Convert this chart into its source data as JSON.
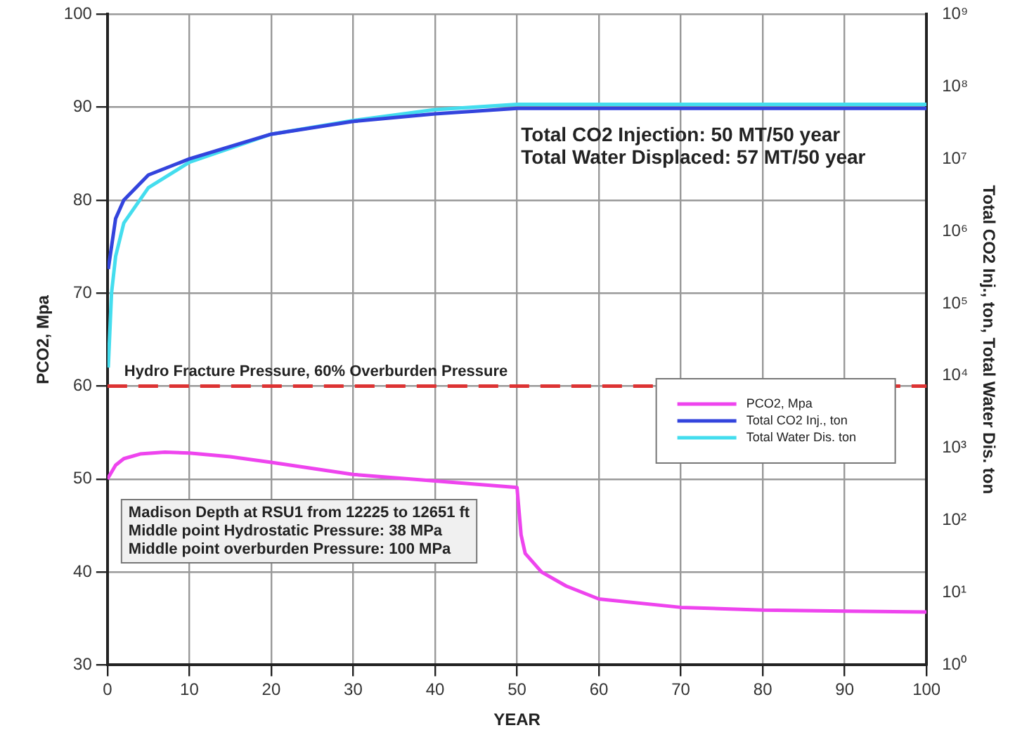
{
  "chart_data": {
    "type": "line",
    "xlabel": "YEAR",
    "ylabel": "PCO2, Mpa",
    "y2label": "Total CO2 Inj., ton, Total Water Dis. ton",
    "xlim": [
      0,
      100
    ],
    "xticks": [
      0,
      10,
      20,
      30,
      40,
      50,
      60,
      70,
      80,
      90,
      100
    ],
    "ylim": [
      30,
      100
    ],
    "yticks": [
      30,
      40,
      50,
      60,
      70,
      80,
      90,
      100
    ],
    "y2lim": [
      1,
      1000000000
    ],
    "y2ticks": [
      {
        "value": 1,
        "label": "10⁰"
      },
      {
        "value": 10,
        "label": "10¹"
      },
      {
        "value": 100,
        "label": "10²"
      },
      {
        "value": 1000,
        "label": "10³"
      },
      {
        "value": 10000,
        "label": "10⁴"
      },
      {
        "value": 100000,
        "label": "10⁵"
      },
      {
        "value": 1000000,
        "label": "10⁶"
      },
      {
        "value": 10000000,
        "label": "10⁷"
      },
      {
        "value": 100000000,
        "label": "10⁸"
      },
      {
        "value": 1000000000,
        "label": "10⁹"
      }
    ],
    "log": "y2",
    "grid": true,
    "legend": "right",
    "marker": "none",
    "line_style": "solid",
    "series": [
      {
        "name": "PCO2, Mpa",
        "color": "#ee44ee",
        "x": [
          0,
          1,
          2,
          4,
          7,
          10,
          15,
          20,
          30,
          40,
          50,
          50.5,
          51,
          53,
          56,
          60,
          70,
          80,
          90,
          100
        ],
        "values": [
          50,
          51.5,
          52.2,
          52.7,
          52.9,
          52.8,
          52.4,
          51.8,
          50.5,
          49.8,
          49.1,
          44,
          42,
          40,
          38.5,
          37.1,
          36.2,
          35.9,
          35.8,
          35.7
        ]
      },
      {
        "name": "Total CO2 Inj., ton",
        "color": "#3344dd",
        "axis": "y2",
        "x": [
          0.1,
          1,
          2,
          5,
          10,
          20,
          30,
          40,
          50,
          100
        ],
        "values": [
          300000,
          1500000,
          2700000,
          6000000,
          10000000,
          22000000,
          33000000,
          42000000,
          50000000,
          50000000
        ]
      },
      {
        "name": "Total Water Dis. ton",
        "color": "#44ddee",
        "axis": "y2",
        "x": [
          0.1,
          0.5,
          1,
          2,
          5,
          10,
          20,
          30,
          40,
          50,
          100
        ],
        "values": [
          13000,
          140000,
          450000,
          1300000,
          4000000,
          9000000,
          22000000,
          34000000,
          48000000,
          57000000,
          57000000
        ]
      }
    ],
    "ref_lines": [
      {
        "axis": "y",
        "value": 60,
        "label": "Hydro Fracture Pressure, 60% Overburden Pressure",
        "color": "#dd3333",
        "line_style": "dashed"
      }
    ],
    "annotations": [
      "Total CO2 Injection: 50 MT/50 year",
      "Total Water Displaced: 57 MT/50 year",
      "Madison Depth at RSU1 from 12225 to 12651 ft",
      "Middle point Hydrostatic Pressure: 38 MPa",
      "Middle point overburden Pressure: 100 MPa"
    ]
  }
}
